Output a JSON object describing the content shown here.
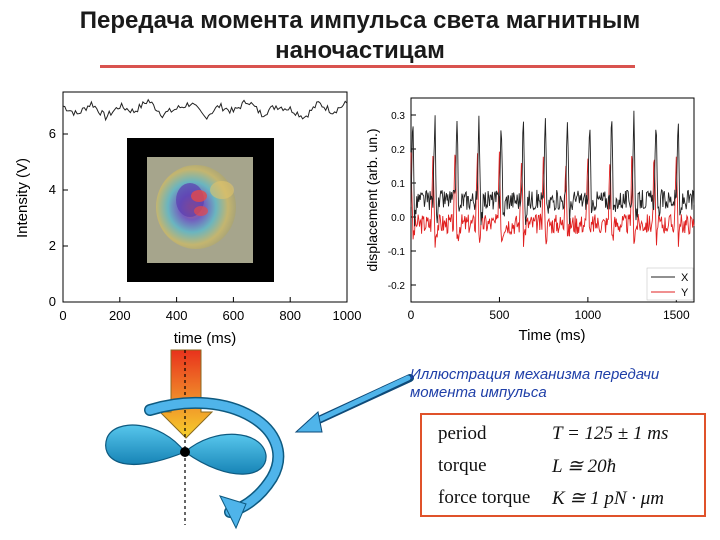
{
  "title": "Передача момента импульса света магнитным наночастицам",
  "caption": "Иллюстрация механизма передачи момента импульса",
  "formulas": [
    {
      "label": "period",
      "expression": "T = 125 ± 1 ms"
    },
    {
      "label": "torque",
      "expression": "L ≅ 20ħ"
    },
    {
      "label": "force torque",
      "expression": "K ≅ 1  pN · μm"
    }
  ],
  "chart_data": [
    {
      "type": "line",
      "xlabel": "time (ms)",
      "ylabel": "Intensity (V)",
      "xlim": [
        0,
        1000
      ],
      "ylim": [
        0,
        7.5
      ],
      "x_ticks": [
        "0",
        "200",
        "400",
        "600",
        "800",
        "1000"
      ],
      "y_ticks": [
        "0",
        "2",
        "4",
        "6"
      ],
      "series": [
        {
          "values_note": "",
          "x": [
            0,
            50,
            100,
            150,
            200,
            250,
            300,
            350,
            400,
            450,
            500,
            550,
            600,
            650,
            700,
            750,
            800,
            850,
            900,
            950,
            1000
          ],
          "y": [
            7.0,
            6.7,
            7.1,
            6.6,
            7.0,
            6.8,
            7.2,
            6.7,
            6.9,
            7.1,
            6.6,
            7.0,
            6.8,
            7.2,
            6.7,
            7.0,
            6.9,
            6.6,
            7.1,
            6.8,
            7.1
          ]
        }
      ]
    },
    {
      "type": "line",
      "xlabel": "Time (ms)",
      "ylabel": "displacement (arb. un.)",
      "xlim": [
        0,
        1600
      ],
      "ylim": [
        -0.25,
        0.35
      ],
      "x_ticks": [
        "0",
        "500",
        "1000",
        "1500"
      ],
      "y_ticks": [
        "0.3",
        "0.2",
        "0.1",
        "0.0",
        "-0.1",
        "-0.2"
      ],
      "legend_position": "bottom-right",
      "series": [
        {
          "name": "X",
          "color": "#222222",
          "period_ms": 125,
          "amplitude": 0.26,
          "offset": 0.05
        },
        {
          "name": "Y",
          "color": "#e02020",
          "period_ms": 125,
          "amplitude": 0.22,
          "offset": -0.02
        }
      ]
    }
  ],
  "colors": {
    "title_rule": "#d9534f",
    "caption": "#1f3fa8",
    "box_border": "#e0522a",
    "propeller": "#2aa6d8",
    "arrow": "#2d8bd8",
    "beam_top": "#e8321c",
    "beam_bottom": "#f6c62b"
  },
  "icons": {
    "propeller": "propeller-shape",
    "light-beam": "down-arrow",
    "rotation": "curved-arrow"
  }
}
